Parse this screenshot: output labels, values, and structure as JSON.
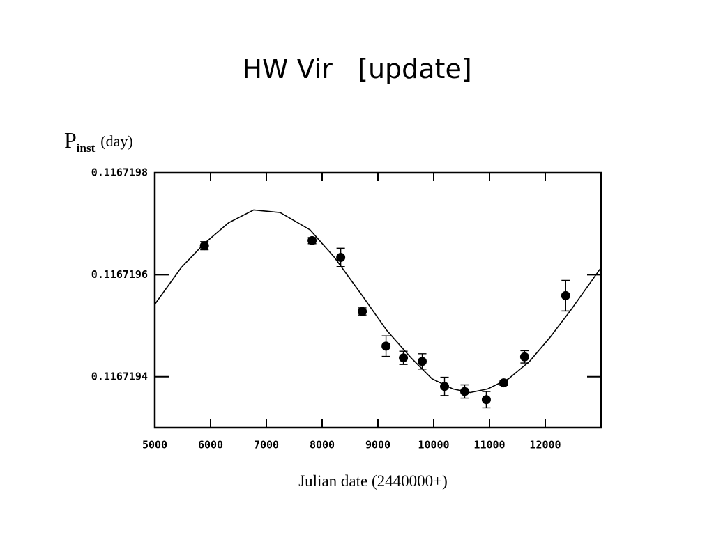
{
  "chart_data": {
    "type": "scatter",
    "title": "HW Vir   [update]",
    "ylabel": "P",
    "ylabel_sub": "inst",
    "ylabel_unit": "(day)",
    "xlabel": "Julian date (2440000+)",
    "xlim": [
      5000,
      13000
    ],
    "xticks": [
      5000,
      6000,
      7000,
      8000,
      9000,
      10000,
      11000,
      12000
    ],
    "ylim": [
      0.1167193,
      0.1167198
    ],
    "yticks": [
      0.1167194,
      0.1167196,
      0.1167198
    ],
    "color": "#000000",
    "points": {
      "x": [
        5890,
        7820,
        8333,
        8720,
        9145,
        9457,
        9794,
        10194,
        10556,
        10943,
        11255,
        11630,
        12366
      ],
      "y": [
        0.116719657,
        0.116719667,
        0.116719634,
        0.116719528,
        0.11671946,
        0.116719437,
        0.11671943,
        0.116719381,
        0.116719371,
        0.116719355,
        0.116719388,
        0.116719439,
        0.116719559
      ],
      "errors": [
        8e-09,
        6e-09,
        1.8e-08,
        7e-09,
        2e-08,
        1.3e-08,
        1.5e-08,
        1.8e-08,
        1.3e-08,
        1.6e-08,
        5e-09,
        1.2e-08,
        3e-08
      ]
    },
    "fit": {
      "x": [
        5000,
        5474,
        5886,
        6323,
        6773,
        7247,
        7784,
        8221,
        8720,
        9157,
        9594,
        9969,
        10343,
        10655,
        10968,
        11342,
        11717,
        12091,
        12466,
        13000
      ],
      "y": [
        0.116719542,
        0.116719614,
        0.116719661,
        0.116719702,
        0.116719727,
        0.116719722,
        0.116719688,
        0.116719634,
        0.116719559,
        0.116719491,
        0.116719437,
        0.116719396,
        0.116719376,
        0.116719369,
        0.116719376,
        0.116719396,
        0.11671943,
        0.116719478,
        0.116719532,
        0.116719614
      ]
    }
  }
}
